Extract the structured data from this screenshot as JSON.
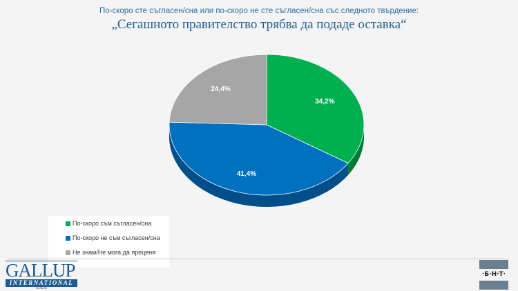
{
  "header": {
    "subtitle": "По-скоро сте съгласен/сна или по-скоро не сте съгласен/сна със следното твърдение:",
    "title": "„Сегашното правителство трябва да подаде оставка“"
  },
  "chart_data": {
    "type": "pie",
    "style": "3d",
    "categories": [
      "По-скоро съм съгласен/сна",
      "По-скоро не съм съгласен/сна",
      "Не знам/Не мога да преценя"
    ],
    "values": [
      34.2,
      41.4,
      24.4
    ],
    "labels": [
      "34,2%",
      "41,4%",
      "24,4%"
    ],
    "colors": [
      "#00b050",
      "#0070c0",
      "#a6a6a6"
    ],
    "side_colors": [
      "#007a38",
      "#004f8a",
      "#777777"
    ],
    "legend_position": "bottom-left"
  },
  "footer": {
    "logo_gallup": "GALLUP",
    "logo_international": "INTERNATIONAL",
    "logo_balkans": "Balkans",
    "logo_bnt": "·Б·Н·Т·"
  }
}
